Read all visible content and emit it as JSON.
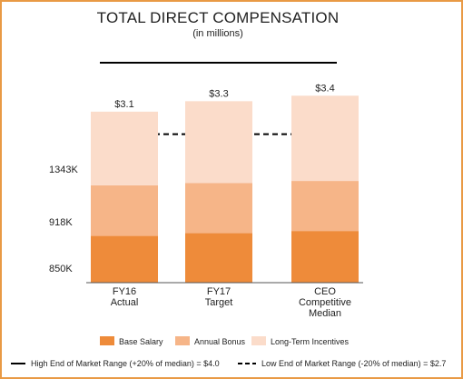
{
  "chart_data": {
    "type": "bar",
    "title": "TOTAL DIRECT COMPENSATION",
    "subtitle": "(in millions)",
    "categories": [
      [
        "FY16",
        "Actual"
      ],
      [
        "FY17",
        "Target"
      ],
      [
        "CEO",
        "Competitive",
        "Median"
      ]
    ],
    "series": [
      {
        "name": "Base Salary",
        "color": "#ee8b3a",
        "values": [
          0.85,
          0.9,
          0.94
        ]
      },
      {
        "name": "Annual Bonus",
        "color": "#f6b588",
        "values": [
          0.92,
          0.91,
          0.91
        ]
      },
      {
        "name": "Long-Term Incentives",
        "color": "#fbdcca",
        "values": [
          1.34,
          1.49,
          1.55
        ]
      }
    ],
    "totals": [
      "$3.1",
      "$3.3",
      "$3.4"
    ],
    "side_labels": [
      "850K",
      "918K",
      "1343K"
    ],
    "reference_lines": [
      {
        "label": "High End of Market Range (+20% of median) = $4.0",
        "value": 4.0,
        "style": "solid"
      },
      {
        "label": "Low End of Market Range (-20% of median) = $2.7",
        "value": 2.7,
        "style": "dashed"
      }
    ],
    "ylim": [
      0,
      4.0
    ],
    "legend_position": "bottom",
    "grid": false
  },
  "colors": {
    "frame": "#e99a45",
    "text": "#222222",
    "line": "#000000"
  }
}
